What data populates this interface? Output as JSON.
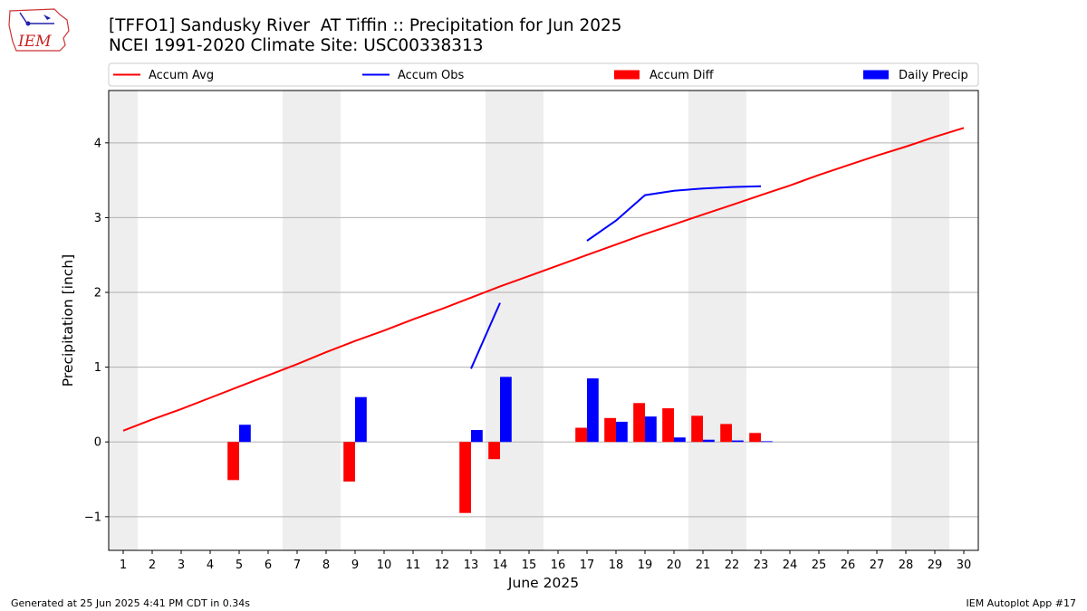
{
  "header": {
    "title": "[TFFO1] Sandusky River  AT Tiffin :: Precipitation for Jun 2025",
    "subtitle": "NCEI 1991-2020 Climate Site: USC00338313"
  },
  "logo": {
    "text": "IEM",
    "icon": "iem-iowa-logo-icon"
  },
  "footer": {
    "left": "Generated at 25 Jun 2025 4:41 PM CDT in 0.34s",
    "right": "IEM Autoplot App #17"
  },
  "colors": {
    "avg": "#ff0000",
    "obs": "#0000ff",
    "diff": "#ff0000",
    "daily": "#0000ff",
    "weekend": "#eeeeee",
    "grid": "#b0b0b0"
  },
  "chart_data": {
    "type": "bar",
    "xlabel": "June 2025",
    "ylabel": "Precipitation [inch]",
    "x": [
      1,
      2,
      3,
      4,
      5,
      6,
      7,
      8,
      9,
      10,
      11,
      12,
      13,
      14,
      15,
      16,
      17,
      18,
      19,
      20,
      21,
      22,
      23,
      24,
      25,
      26,
      27,
      28,
      29,
      30
    ],
    "xlim": [
      0.5,
      30.5
    ],
    "ylim": [
      -1.45,
      4.7
    ],
    "yticks": [
      -1,
      0,
      1,
      2,
      3,
      4
    ],
    "ytick_labels": [
      "−1",
      "0",
      "1",
      "2",
      "3",
      "4"
    ],
    "grid": "y",
    "weekend_shading": [
      [
        0.5,
        1.5
      ],
      [
        6.5,
        8.5
      ],
      [
        13.5,
        15.5
      ],
      [
        20.5,
        22.5
      ],
      [
        27.5,
        29.5
      ]
    ],
    "legend": {
      "placement": "top",
      "entries": [
        {
          "label": "Accum Avg",
          "kind": "line",
          "color": "#ff0000"
        },
        {
          "label": "Accum Obs",
          "kind": "line",
          "color": "#0000ff"
        },
        {
          "label": "Accum Diff",
          "kind": "bar",
          "color": "#ff0000"
        },
        {
          "label": "Daily Precip",
          "kind": "bar",
          "color": "#0000ff"
        }
      ]
    },
    "series": [
      {
        "name": "Accum Avg",
        "type": "line",
        "color": "#ff0000",
        "values": [
          0.15,
          0.3,
          0.44,
          0.59,
          0.74,
          0.89,
          1.04,
          1.2,
          1.35,
          1.49,
          1.64,
          1.78,
          1.93,
          2.08,
          2.22,
          2.36,
          2.5,
          2.64,
          2.78,
          2.91,
          3.04,
          3.17,
          3.3,
          3.43,
          3.57,
          3.7,
          3.83,
          3.95,
          4.08,
          4.2
        ]
      },
      {
        "name": "Accum Obs",
        "type": "line",
        "color": "#0000ff",
        "values": [
          null,
          null,
          null,
          null,
          null,
          null,
          null,
          null,
          null,
          null,
          null,
          null,
          0.98,
          1.86,
          null,
          null,
          2.69,
          2.96,
          3.3,
          3.36,
          3.39,
          3.41,
          3.42,
          null,
          null,
          null,
          null,
          null,
          null,
          null
        ]
      },
      {
        "name": "Accum Diff",
        "type": "bar",
        "color": "#ff0000",
        "offset": "left",
        "values": [
          null,
          null,
          null,
          null,
          -0.51,
          null,
          null,
          null,
          -0.53,
          null,
          null,
          null,
          -0.95,
          -0.23,
          null,
          null,
          0.19,
          0.32,
          0.52,
          0.45,
          0.35,
          0.24,
          0.12,
          null,
          null,
          null,
          null,
          null,
          null,
          null
        ]
      },
      {
        "name": "Daily Precip",
        "type": "bar",
        "color": "#0000ff",
        "offset": "right",
        "values": [
          null,
          null,
          null,
          null,
          0.23,
          null,
          null,
          null,
          0.6,
          null,
          null,
          null,
          0.16,
          0.87,
          null,
          null,
          0.85,
          0.27,
          0.34,
          0.06,
          0.03,
          0.02,
          0.01,
          null,
          null,
          null,
          null,
          null,
          null,
          null
        ]
      }
    ]
  }
}
